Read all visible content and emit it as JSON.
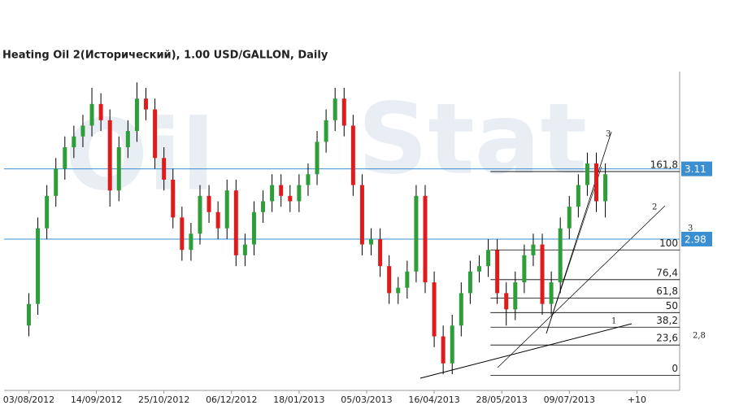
{
  "chart_data": {
    "type": "candlestick",
    "title": "Heating Oil 2(Исторический), 1.00 USD/GALLON, Daily",
    "watermark": [
      "Oil",
      "Stat"
    ],
    "x": [
      0,
      4,
      8,
      12,
      16,
      20,
      24,
      28,
      32,
      36,
      40,
      44,
      48,
      52,
      56,
      60,
      64,
      68,
      72,
      76,
      80,
      84,
      88,
      92,
      96,
      100,
      104,
      108,
      112,
      116,
      120,
      124,
      128,
      132,
      136,
      140,
      144,
      148,
      152,
      156,
      160,
      164,
      168,
      172,
      176,
      180,
      184,
      188,
      192,
      196,
      200,
      204,
      208,
      212,
      216,
      220,
      224,
      228,
      232,
      236,
      240,
      244,
      248,
      252,
      256
    ],
    "open": [
      2.82,
      2.86,
      3.0,
      3.06,
      3.11,
      3.15,
      3.17,
      3.19,
      3.23,
      3.2,
      3.07,
      3.15,
      3.18,
      3.24,
      3.22,
      3.13,
      3.09,
      3.02,
      2.96,
      2.99,
      3.06,
      3.03,
      3.0,
      3.07,
      2.95,
      2.97,
      3.03,
      3.05,
      3.08,
      3.06,
      3.05,
      3.08,
      3.1,
      3.16,
      3.2,
      3.24,
      3.19,
      3.08,
      2.97,
      2.98,
      2.93,
      2.88,
      2.89,
      2.92,
      3.06,
      2.9,
      2.8,
      2.75,
      2.82,
      2.88,
      2.92,
      2.93,
      2.96,
      2.88,
      2.85,
      2.9,
      2.95,
      2.97,
      2.86,
      2.9,
      3.0,
      3.04,
      3.08,
      3.12,
      3.05
    ],
    "high": [
      2.88,
      3.02,
      3.08,
      3.13,
      3.17,
      3.19,
      3.21,
      3.26,
      3.25,
      3.22,
      3.17,
      3.2,
      3.27,
      3.26,
      3.24,
      3.15,
      3.11,
      3.04,
      3.01,
      3.08,
      3.08,
      3.05,
      3.09,
      3.09,
      2.99,
      3.05,
      3.07,
      3.1,
      3.1,
      3.08,
      3.1,
      3.12,
      3.18,
      3.22,
      3.26,
      3.26,
      3.21,
      3.1,
      3.0,
      3.0,
      2.95,
      2.91,
      2.94,
      3.08,
      3.08,
      2.92,
      2.82,
      2.84,
      2.9,
      2.94,
      2.95,
      2.98,
      2.98,
      2.9,
      2.92,
      2.97,
      2.99,
      2.99,
      2.92,
      3.02,
      3.06,
      3.1,
      3.14,
      3.14,
      3.12
    ],
    "low": [
      2.8,
      2.84,
      2.98,
      3.04,
      3.09,
      3.13,
      3.15,
      3.17,
      3.18,
      3.04,
      3.05,
      3.13,
      3.16,
      3.2,
      3.11,
      3.07,
      3.0,
      2.94,
      2.94,
      2.97,
      3.01,
      2.98,
      2.98,
      2.93,
      2.93,
      2.95,
      3.01,
      3.03,
      3.04,
      3.03,
      3.03,
      3.06,
      3.08,
      3.14,
      3.18,
      3.17,
      3.06,
      2.95,
      2.95,
      2.91,
      2.86,
      2.86,
      2.87,
      2.9,
      2.88,
      2.78,
      2.73,
      2.73,
      2.8,
      2.86,
      2.9,
      2.91,
      2.86,
      2.82,
      2.83,
      2.88,
      2.93,
      2.84,
      2.84,
      2.88,
      2.98,
      3.02,
      3.06,
      3.03,
      3.02
    ],
    "close": [
      2.86,
      3.0,
      3.06,
      3.11,
      3.15,
      3.17,
      3.19,
      3.23,
      3.2,
      3.07,
      3.15,
      3.18,
      3.24,
      3.22,
      3.13,
      3.09,
      3.02,
      2.96,
      2.99,
      3.06,
      3.03,
      3.0,
      3.07,
      2.95,
      2.97,
      3.03,
      3.05,
      3.08,
      3.06,
      3.05,
      3.08,
      3.1,
      3.16,
      3.2,
      3.24,
      3.19,
      3.08,
      2.97,
      2.98,
      2.93,
      2.88,
      2.89,
      2.92,
      3.06,
      2.9,
      2.8,
      2.75,
      2.82,
      2.88,
      2.92,
      2.93,
      2.96,
      2.88,
      2.85,
      2.9,
      2.95,
      2.97,
      2.86,
      2.9,
      3.0,
      3.04,
      3.08,
      3.12,
      3.05,
      3.1
    ],
    "up_color": "#2e9e3a",
    "down_color": "#e01b1b",
    "xlim": [
      -11,
      289
    ],
    "ylim": [
      2.7,
      3.29
    ],
    "xticks": [
      {
        "value": 0,
        "label": "03/08/2012"
      },
      {
        "value": 30,
        "label": "14/09/2012"
      },
      {
        "value": 60,
        "label": "25/10/2012"
      },
      {
        "value": 90,
        "label": "06/12/2012"
      },
      {
        "value": 120,
        "label": "18/01/2013"
      },
      {
        "value": 150,
        "label": "05/03/2013"
      },
      {
        "value": 180,
        "label": "16/04/2013"
      },
      {
        "value": 210,
        "label": "28/05/2013"
      },
      {
        "value": 240,
        "label": "09/07/2013"
      },
      {
        "value": 270,
        "label": "+10"
      }
    ],
    "levels": [
      3.11,
      2.98
    ],
    "level_color": "#3b8fd0",
    "fibonacci": {
      "start": 205,
      "levels": [
        {
          "value": 3.105,
          "label": "161,8"
        },
        {
          "value": 2.96,
          "label": "100"
        },
        {
          "value": 2.905,
          "label": "76,4"
        },
        {
          "value": 2.871,
          "label": "61,8"
        },
        {
          "value": 2.844,
          "label": "50"
        },
        {
          "value": 2.817,
          "label": "38,2"
        },
        {
          "value": 2.784,
          "label": "23,6"
        },
        {
          "value": 2.728,
          "label": "0"
        }
      ]
    },
    "annotations": [
      "1",
      "2",
      "3",
      "3",
      "2,8"
    ]
  }
}
